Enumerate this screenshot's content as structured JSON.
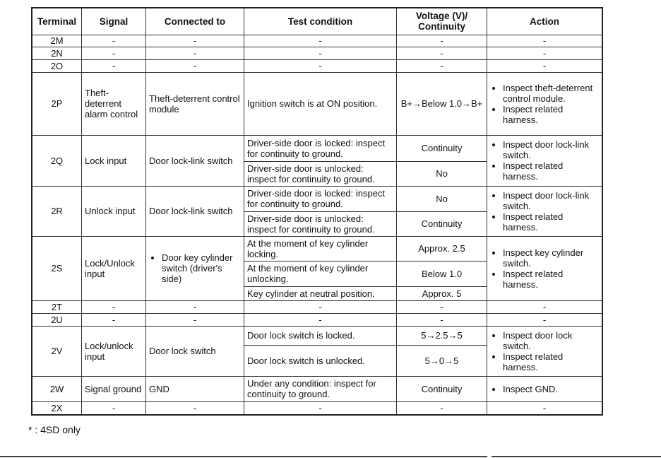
{
  "headers": [
    "Terminal",
    "Signal",
    "Connected to",
    "Test condition",
    "Voltage (V)/ Continuity",
    "Action"
  ],
  "rows": [
    {
      "terminal": "2M",
      "signal": "-",
      "connected": "-",
      "conditions": [
        {
          "test": "-",
          "value": "-"
        }
      ],
      "action": [
        "-"
      ]
    },
    {
      "terminal": "2N",
      "signal": "-",
      "connected": "-",
      "conditions": [
        {
          "test": "-",
          "value": "-"
        }
      ],
      "action": [
        "-"
      ]
    },
    {
      "terminal": "2O",
      "signal": "-",
      "connected": "-",
      "conditions": [
        {
          "test": "-",
          "value": "-"
        }
      ],
      "action": [
        "-"
      ]
    },
    {
      "terminal": "2P",
      "signal": "Theft-deterrent alarm control",
      "connected": "Theft-deterrent control module",
      "conditions": [
        {
          "test": "Ignition switch is at ON position.",
          "value": "B+→Below 1.0→B+"
        }
      ],
      "action": [
        "Inspect theft-deterrent control module.",
        "Inspect related harness."
      ]
    },
    {
      "terminal": "2Q",
      "signal": "Lock input",
      "connected": "Door lock-link switch",
      "conditions": [
        {
          "test": "Driver-side door is locked: inspect for continuity to ground.",
          "value": "Continuity"
        },
        {
          "test": "Driver-side door is unlocked: inspect for continuity to ground.",
          "value": "No"
        }
      ],
      "action": [
        "Inspect door lock-link switch.",
        "Inspect related harness."
      ]
    },
    {
      "terminal": "2R",
      "signal": "Unlock input",
      "connected": "Door lock-link switch",
      "conditions": [
        {
          "test": "Driver-side door is locked: inspect for continuity to ground.",
          "value": "No"
        },
        {
          "test": "Driver-side door is unlocked: inspect for continuity to ground.",
          "value": "Continuity"
        }
      ],
      "action": [
        "Inspect door lock-link switch.",
        "Inspect related harness."
      ]
    },
    {
      "terminal": "2S",
      "signal": "Lock/Unlock input",
      "connected_list": [
        "Door key cylinder switch (driver's side)"
      ],
      "conditions": [
        {
          "test": "At the moment of key cylinder locking.",
          "value": "Approx. 2.5"
        },
        {
          "test": "At the moment of key cylinder unlocking.",
          "value": "Below 1.0"
        },
        {
          "test": "Key cylinder at neutral position.",
          "value": "Approx. 5"
        }
      ],
      "action": [
        "Inspect key cylinder switch.",
        "Inspect related harness."
      ]
    },
    {
      "terminal": "2T",
      "signal": "-",
      "connected": "-",
      "conditions": [
        {
          "test": "-",
          "value": "-"
        }
      ],
      "action": [
        "-"
      ]
    },
    {
      "terminal": "2U",
      "signal": "-",
      "connected": "-",
      "conditions": [
        {
          "test": "-",
          "value": "-"
        }
      ],
      "action": [
        "-"
      ]
    },
    {
      "terminal": "2V",
      "signal": "Lock/unlock input",
      "connected": "Door lock switch",
      "conditions": [
        {
          "test": "Door lock switch is locked.",
          "value": "5→2.5→5"
        },
        {
          "test": "Door lock switch is unlocked.",
          "value": "5→0→5"
        }
      ],
      "action": [
        "Inspect door lock switch.",
        "Inspect related harness."
      ]
    },
    {
      "terminal": "2W",
      "signal": "Signal ground",
      "connected": "GND",
      "conditions": [
        {
          "test": "Under any condition: inspect for continuity to ground.",
          "value": "Continuity"
        }
      ],
      "action": [
        "Inspect GND."
      ]
    },
    {
      "terminal": "2X",
      "signal": "-",
      "connected": "-",
      "conditions": [
        {
          "test": "-",
          "value": "-"
        }
      ],
      "action": [
        "-"
      ]
    }
  ],
  "footnote": "*   : 4SD only"
}
